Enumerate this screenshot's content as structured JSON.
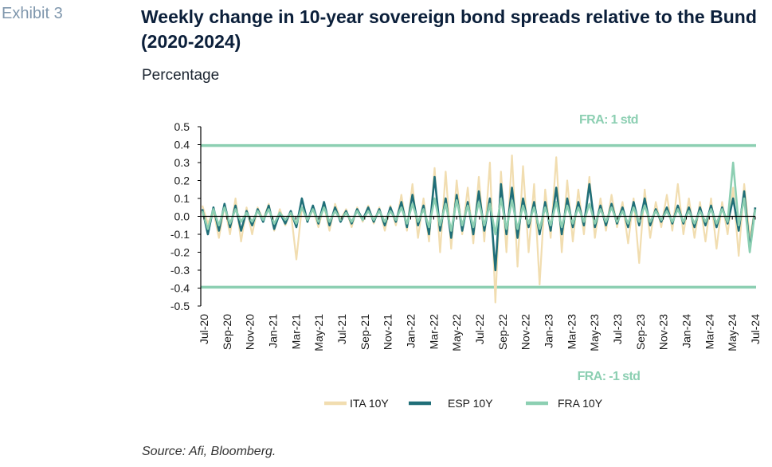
{
  "exhibit": "Exhibit 3",
  "title": "Weekly change in 10-year sovereign bond spreads relative to the Bund (2020-2024)",
  "subtitle": "Percentage",
  "source": "Source: Afi, Bloomberg.",
  "colors": {
    "ita": "#f1ddb0",
    "esp": "#1f6e78",
    "fra": "#8ccfb2",
    "axis": "#000000"
  },
  "chart_data": {
    "type": "line",
    "ylim": [
      -0.5,
      0.5
    ],
    "yticks": [
      0.5,
      0.4,
      0.3,
      0.2,
      0.1,
      0.0,
      -0.1,
      -0.2,
      -0.3,
      -0.4,
      -0.5
    ],
    "ytick_labels": [
      "0.5",
      "0.4",
      "0.3",
      "0.2",
      "0.1",
      "0.0",
      "-0.1",
      "-0.2",
      "-0.3",
      "-0.4",
      "-0.5"
    ],
    "xtick_labels": [
      "Jul-20",
      "Sep-20",
      "Nov-20",
      "Jan-21",
      "Mar-21",
      "May-21",
      "Jul-21",
      "Sep-21",
      "Nov-21",
      "Jan-22",
      "Mar-22",
      "May-22",
      "Jul-22",
      "Sep-22",
      "Nov-22",
      "Jan-23",
      "Mar-23",
      "May-23",
      "Jul-23",
      "Sep-23",
      "Nov-23",
      "Jan-24",
      "Mar-24",
      "May-24",
      "Jul-24"
    ],
    "reference_lines": [
      {
        "value": 0.395,
        "label": "FRA: 1 std"
      },
      {
        "value": -0.395,
        "label": "FRA: -1 std"
      }
    ],
    "series": [
      {
        "name": "ITA 10Y",
        "values": [
          0.06,
          -0.04,
          0.03,
          -0.12,
          0.06,
          -0.1,
          0.1,
          -0.14,
          0.05,
          -0.1,
          0.05,
          -0.02,
          0.07,
          -0.08,
          0.04,
          -0.05,
          0.03,
          -0.24,
          0.05,
          -0.03,
          0.04,
          -0.06,
          0.06,
          -0.08,
          0.07,
          -0.02,
          0.04,
          -0.06,
          0.05,
          -0.03,
          0.06,
          -0.04,
          0.05,
          -0.08,
          0.06,
          -0.05,
          0.12,
          -0.08,
          0.18,
          -0.12,
          0.1,
          -0.14,
          0.27,
          -0.2,
          0.25,
          -0.18,
          0.2,
          -0.1,
          0.16,
          -0.15,
          0.22,
          -0.14,
          0.3,
          -0.48,
          0.25,
          -0.2,
          0.34,
          -0.28,
          0.28,
          -0.2,
          0.18,
          -0.38,
          0.15,
          -0.12,
          0.33,
          -0.2,
          0.2,
          -0.14,
          0.15,
          -0.1,
          0.22,
          -0.12,
          0.1,
          -0.08,
          0.12,
          -0.06,
          0.08,
          -0.15,
          0.1,
          -0.26,
          0.15,
          -0.12,
          0.08,
          -0.06,
          0.12,
          -0.08,
          0.18,
          -0.1,
          0.1,
          -0.12,
          0.08,
          -0.14,
          0.1,
          -0.18,
          0.08,
          -0.1,
          0.16,
          -0.22,
          0.18,
          -0.12,
          0.05
        ]
      },
      {
        "name": "ESP 10Y",
        "values": [
          0.04,
          -0.1,
          0.05,
          -0.08,
          0.07,
          -0.06,
          0.06,
          -0.08,
          0.03,
          -0.05,
          0.04,
          -0.03,
          0.06,
          -0.07,
          0.02,
          -0.04,
          0.03,
          -0.06,
          0.1,
          -0.03,
          0.06,
          -0.04,
          0.08,
          -0.05,
          0.05,
          -0.03,
          0.03,
          -0.04,
          0.04,
          -0.02,
          0.05,
          -0.03,
          0.04,
          -0.05,
          0.05,
          -0.03,
          0.08,
          -0.06,
          0.12,
          -0.05,
          0.06,
          -0.1,
          0.22,
          -0.08,
          0.1,
          -0.12,
          0.12,
          -0.08,
          0.08,
          -0.1,
          0.14,
          -0.08,
          0.1,
          -0.3,
          0.18,
          -0.1,
          0.16,
          -0.12,
          0.1,
          -0.06,
          0.08,
          -0.1,
          0.08,
          -0.08,
          0.16,
          -0.1,
          0.1,
          -0.06,
          0.08,
          -0.05,
          0.18,
          -0.06,
          0.06,
          -0.05,
          0.07,
          -0.04,
          0.05,
          -0.06,
          0.08,
          -0.05,
          0.1,
          -0.05,
          0.04,
          -0.03,
          0.05,
          -0.04,
          0.06,
          -0.04,
          0.05,
          -0.06,
          0.05,
          -0.05,
          0.06,
          -0.06,
          0.05,
          -0.04,
          0.1,
          -0.08,
          0.14,
          -0.18,
          0.05
        ]
      },
      {
        "name": "FRA 10Y",
        "values": [
          0.03,
          -0.07,
          0.04,
          -0.05,
          0.05,
          -0.04,
          0.04,
          -0.03,
          0.02,
          -0.03,
          0.03,
          -0.02,
          0.04,
          -0.04,
          0.02,
          -0.02,
          0.02,
          -0.04,
          0.05,
          -0.02,
          0.04,
          -0.03,
          0.05,
          -0.03,
          0.03,
          -0.02,
          0.02,
          -0.03,
          0.03,
          -0.02,
          0.03,
          -0.02,
          0.03,
          -0.03,
          0.03,
          -0.02,
          0.05,
          -0.04,
          0.07,
          -0.03,
          0.04,
          -0.06,
          0.1,
          -0.05,
          0.07,
          -0.08,
          0.09,
          -0.05,
          0.06,
          -0.06,
          0.08,
          -0.05,
          0.07,
          -0.1,
          0.1,
          -0.07,
          0.09,
          -0.07,
          0.06,
          -0.04,
          0.05,
          -0.07,
          0.05,
          -0.05,
          0.08,
          -0.06,
          0.06,
          -0.04,
          0.05,
          -0.03,
          0.07,
          -0.04,
          0.04,
          -0.03,
          0.05,
          -0.03,
          0.03,
          -0.04,
          0.05,
          -0.03,
          0.06,
          -0.03,
          0.03,
          -0.02,
          0.03,
          -0.03,
          0.04,
          -0.03,
          0.03,
          -0.04,
          0.03,
          -0.03,
          0.04,
          -0.04,
          0.04,
          -0.03,
          0.3,
          -0.05,
          0.1,
          -0.2,
          0.04
        ]
      }
    ],
    "legend": {
      "position": "bottom"
    }
  }
}
